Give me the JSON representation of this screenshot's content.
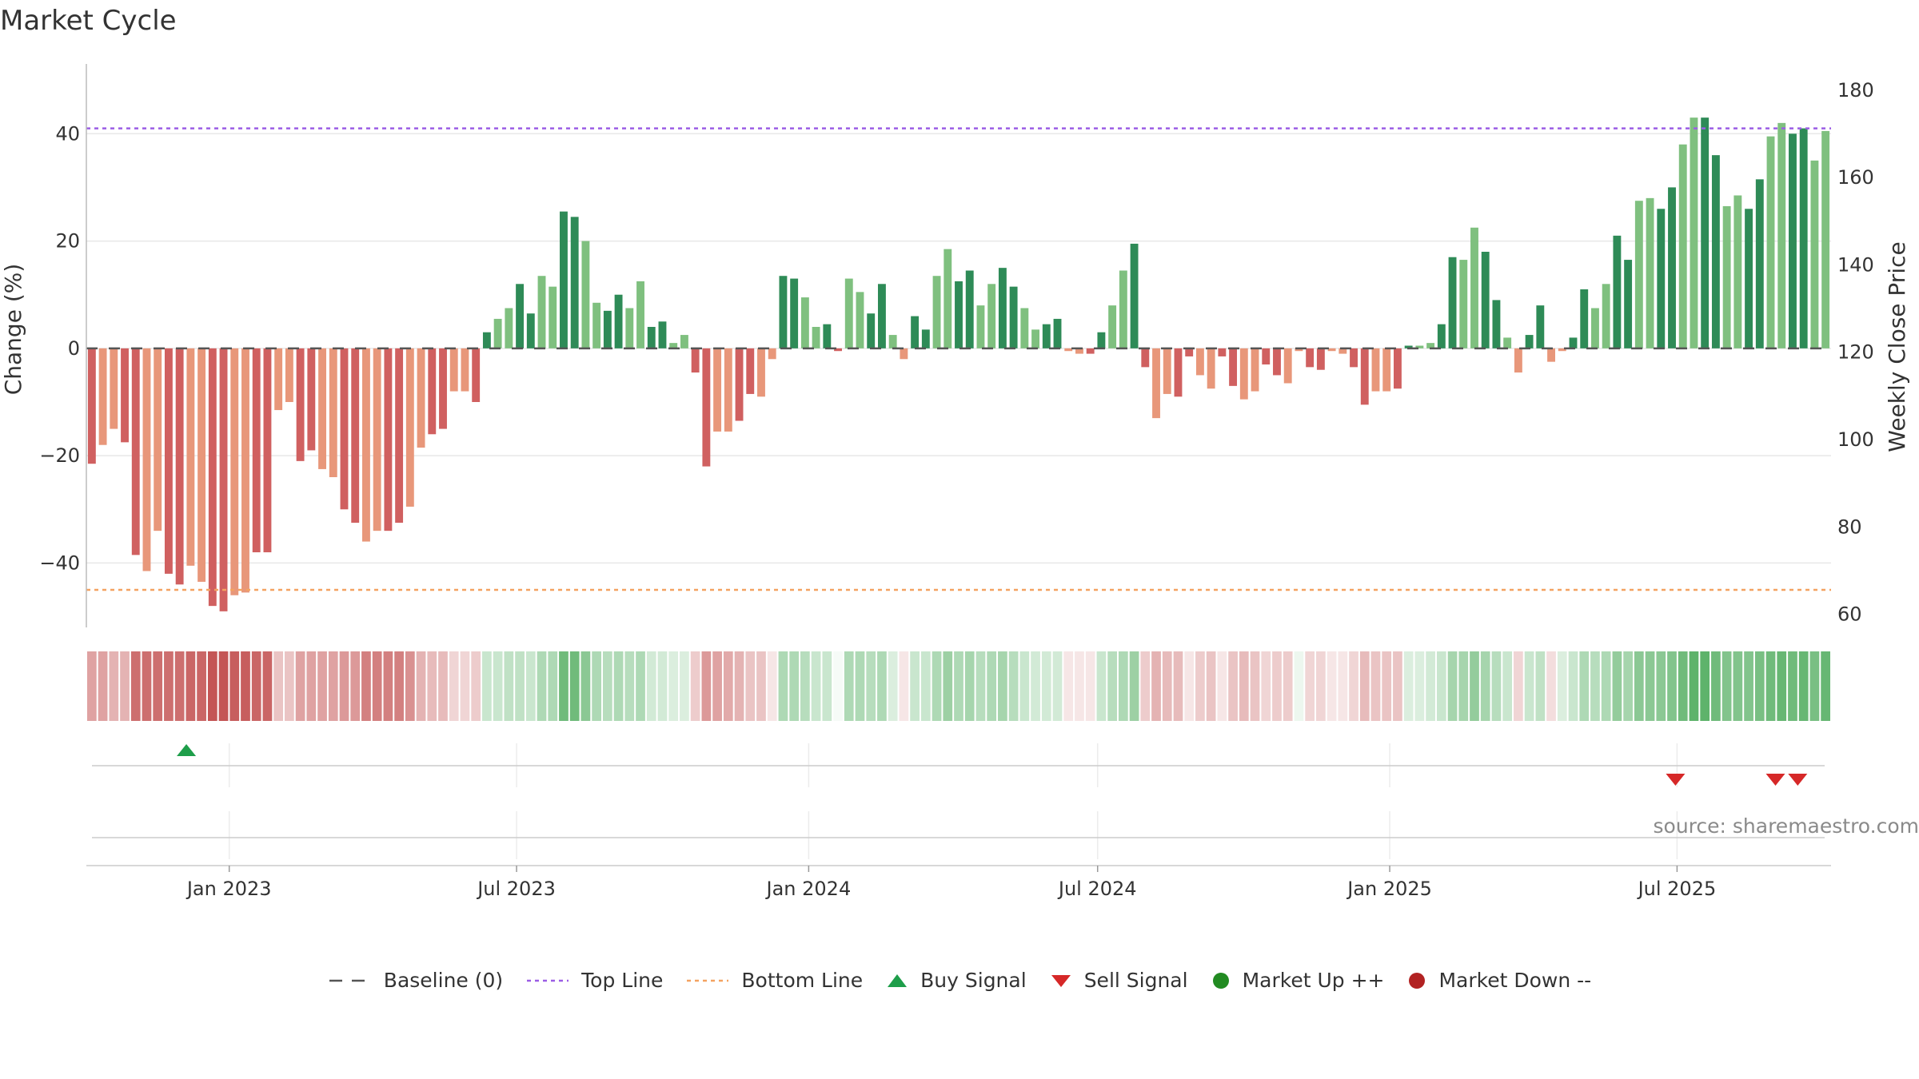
{
  "title": "Market Cycle",
  "source": "source: sharemaestro.com",
  "colors": {
    "pos_dark": "#2e8b57",
    "pos_light": "#7fc07f",
    "neg_dark": "#d06060",
    "neg_light": "#e8977a",
    "top_line": "#9b5de5",
    "bottom_line": "#f4a261",
    "buy": "#1e9e4a",
    "sell": "#d62828",
    "market_up": "#228b22",
    "market_down": "#b22222",
    "baseline": "#555555"
  },
  "legend": [
    {
      "label": "Baseline (0)",
      "icon": "dash-line"
    },
    {
      "label": "Top Line",
      "icon": "dotted-purple-line"
    },
    {
      "label": "Bottom Line",
      "icon": "dotted-orange-line"
    },
    {
      "label": "Buy Signal",
      "icon": "triangle-up"
    },
    {
      "label": "Sell Signal",
      "icon": "triangle-down"
    },
    {
      "label": "Market Up ++",
      "icon": "green-dot"
    },
    {
      "label": "Market Down --",
      "icon": "red-dot"
    }
  ],
  "chart_data": {
    "type": "bar",
    "title": "Market Cycle",
    "ylabel": "Change (%)",
    "y2label": "Weekly Close Price",
    "ylim": [
      -52,
      53
    ],
    "y_ticks": [
      40,
      20,
      0,
      -20,
      -40
    ],
    "y_tick_labels": [
      "40",
      "20",
      "0",
      "−20",
      "−40"
    ],
    "y2lim": [
      57,
      186
    ],
    "y2_ticks": [
      180,
      160,
      140,
      120,
      100,
      80,
      60
    ],
    "x_start": "2022-10-03",
    "x_end": "2025-10-06",
    "x_ticks": [
      "2023-01-01",
      "2023-07-01",
      "2024-01-01",
      "2024-07-01",
      "2025-01-01",
      "2025-07-01"
    ],
    "x_tick_labels": [
      "Jan 2023",
      "Jul 2023",
      "Jan 2024",
      "Jul 2024",
      "Jan 2025",
      "Jul 2025"
    ],
    "top_line": 41,
    "bottom_line": -45,
    "grid": true,
    "legend_position": "bottom",
    "weekly_change": [
      -21.5,
      -18,
      -15,
      -17.5,
      -38.5,
      -41.5,
      -34,
      -42,
      -44,
      -40.5,
      -43.5,
      -48,
      -49,
      -46,
      -45.5,
      -38,
      -38,
      -11.5,
      -10,
      -21,
      -19,
      -22.5,
      -24,
      -30,
      -32.5,
      -36,
      -34,
      -34,
      -32.5,
      -29.5,
      -18.5,
      -16,
      -15,
      -8,
      -8,
      -10,
      3,
      5.5,
      7.5,
      12,
      6.5,
      13.5,
      11.5,
      25.5,
      24.5,
      20,
      8.5,
      7,
      10,
      7.5,
      12.5,
      4,
      5,
      1,
      2.5,
      -4.5,
      -22,
      -15.5,
      -15.5,
      -13.5,
      -8.5,
      -9,
      -2,
      13.5,
      13,
      9.5,
      4,
      4.5,
      -0.5,
      13,
      10.5,
      6.5,
      12,
      2.5,
      -2,
      6,
      3.5,
      13.5,
      18.5,
      12.5,
      14.5,
      8,
      12,
      15,
      11.5,
      7.5,
      3.5,
      4.5,
      5.5,
      -0.5,
      -1,
      -1,
      3,
      8,
      14.5,
      19.5,
      -3.5,
      -13,
      -8.5,
      -9,
      -1.5,
      -5,
      -7.5,
      -1.5,
      -7,
      -9.5,
      -8,
      -3,
      -5,
      -6.5,
      -0.5,
      -3.5,
      -4,
      -0.5,
      -1,
      -3.5,
      -10.5,
      -8,
      -8,
      -7.5,
      0.5,
      0.5,
      1,
      4.5,
      17,
      16.5,
      22.5,
      18,
      9,
      2,
      -4.5,
      2.5,
      8,
      -2.5,
      -0.5,
      2,
      11,
      7.5,
      12,
      21,
      16.5,
      27.5,
      28,
      26,
      30,
      38,
      43,
      43,
      36,
      26.5,
      28.5,
      26,
      31.5,
      39.5,
      42,
      40,
      41,
      35,
      40.5
    ],
    "strength_strip": [
      -0.55,
      -0.55,
      -0.45,
      -0.45,
      -0.85,
      -0.85,
      -0.85,
      -0.85,
      -0.85,
      -0.9,
      -0.9,
      -1,
      -1,
      -0.95,
      -0.95,
      -0.9,
      -0.9,
      -0.35,
      -0.35,
      -0.55,
      -0.55,
      -0.55,
      -0.55,
      -0.6,
      -0.6,
      -0.75,
      -0.75,
      -0.75,
      -0.75,
      -0.65,
      -0.45,
      -0.4,
      -0.4,
      -0.25,
      -0.25,
      -0.3,
      0.3,
      0.3,
      0.35,
      0.35,
      0.3,
      0.45,
      0.45,
      0.8,
      0.8,
      0.65,
      0.45,
      0.4,
      0.45,
      0.4,
      0.45,
      0.25,
      0.25,
      0.2,
      0.2,
      -0.3,
      -0.6,
      -0.55,
      -0.5,
      -0.45,
      -0.35,
      -0.35,
      -0.15,
      0.45,
      0.45,
      0.4,
      0.3,
      0.3,
      0.05,
      0.45,
      0.45,
      0.4,
      0.45,
      0.2,
      -0.15,
      0.3,
      0.3,
      0.45,
      0.55,
      0.45,
      0.5,
      0.4,
      0.45,
      0.5,
      0.4,
      0.3,
      0.25,
      0.25,
      0.25,
      -0.15,
      -0.15,
      -0.15,
      0.3,
      0.4,
      0.45,
      0.55,
      -0.3,
      -0.45,
      -0.4,
      -0.4,
      -0.15,
      -0.3,
      -0.35,
      -0.15,
      -0.35,
      -0.4,
      -0.35,
      -0.25,
      -0.3,
      -0.3,
      0.1,
      -0.25,
      -0.25,
      -0.15,
      -0.15,
      -0.25,
      -0.4,
      -0.35,
      -0.35,
      -0.35,
      0.2,
      0.2,
      0.25,
      0.3,
      0.5,
      0.5,
      0.6,
      0.5,
      0.4,
      0.3,
      -0.25,
      0.3,
      0.35,
      -0.2,
      0.2,
      0.3,
      0.45,
      0.4,
      0.45,
      0.6,
      0.5,
      0.65,
      0.65,
      0.65,
      0.7,
      0.8,
      0.9,
      0.9,
      0.8,
      0.7,
      0.7,
      0.7,
      0.75,
      0.8,
      0.85,
      0.8,
      0.85,
      0.75,
      0.85
    ],
    "buy_signals": [
      "2022-12-05"
    ],
    "sell_signals": [
      "2025-06-30",
      "2025-09-01",
      "2025-09-15"
    ]
  }
}
